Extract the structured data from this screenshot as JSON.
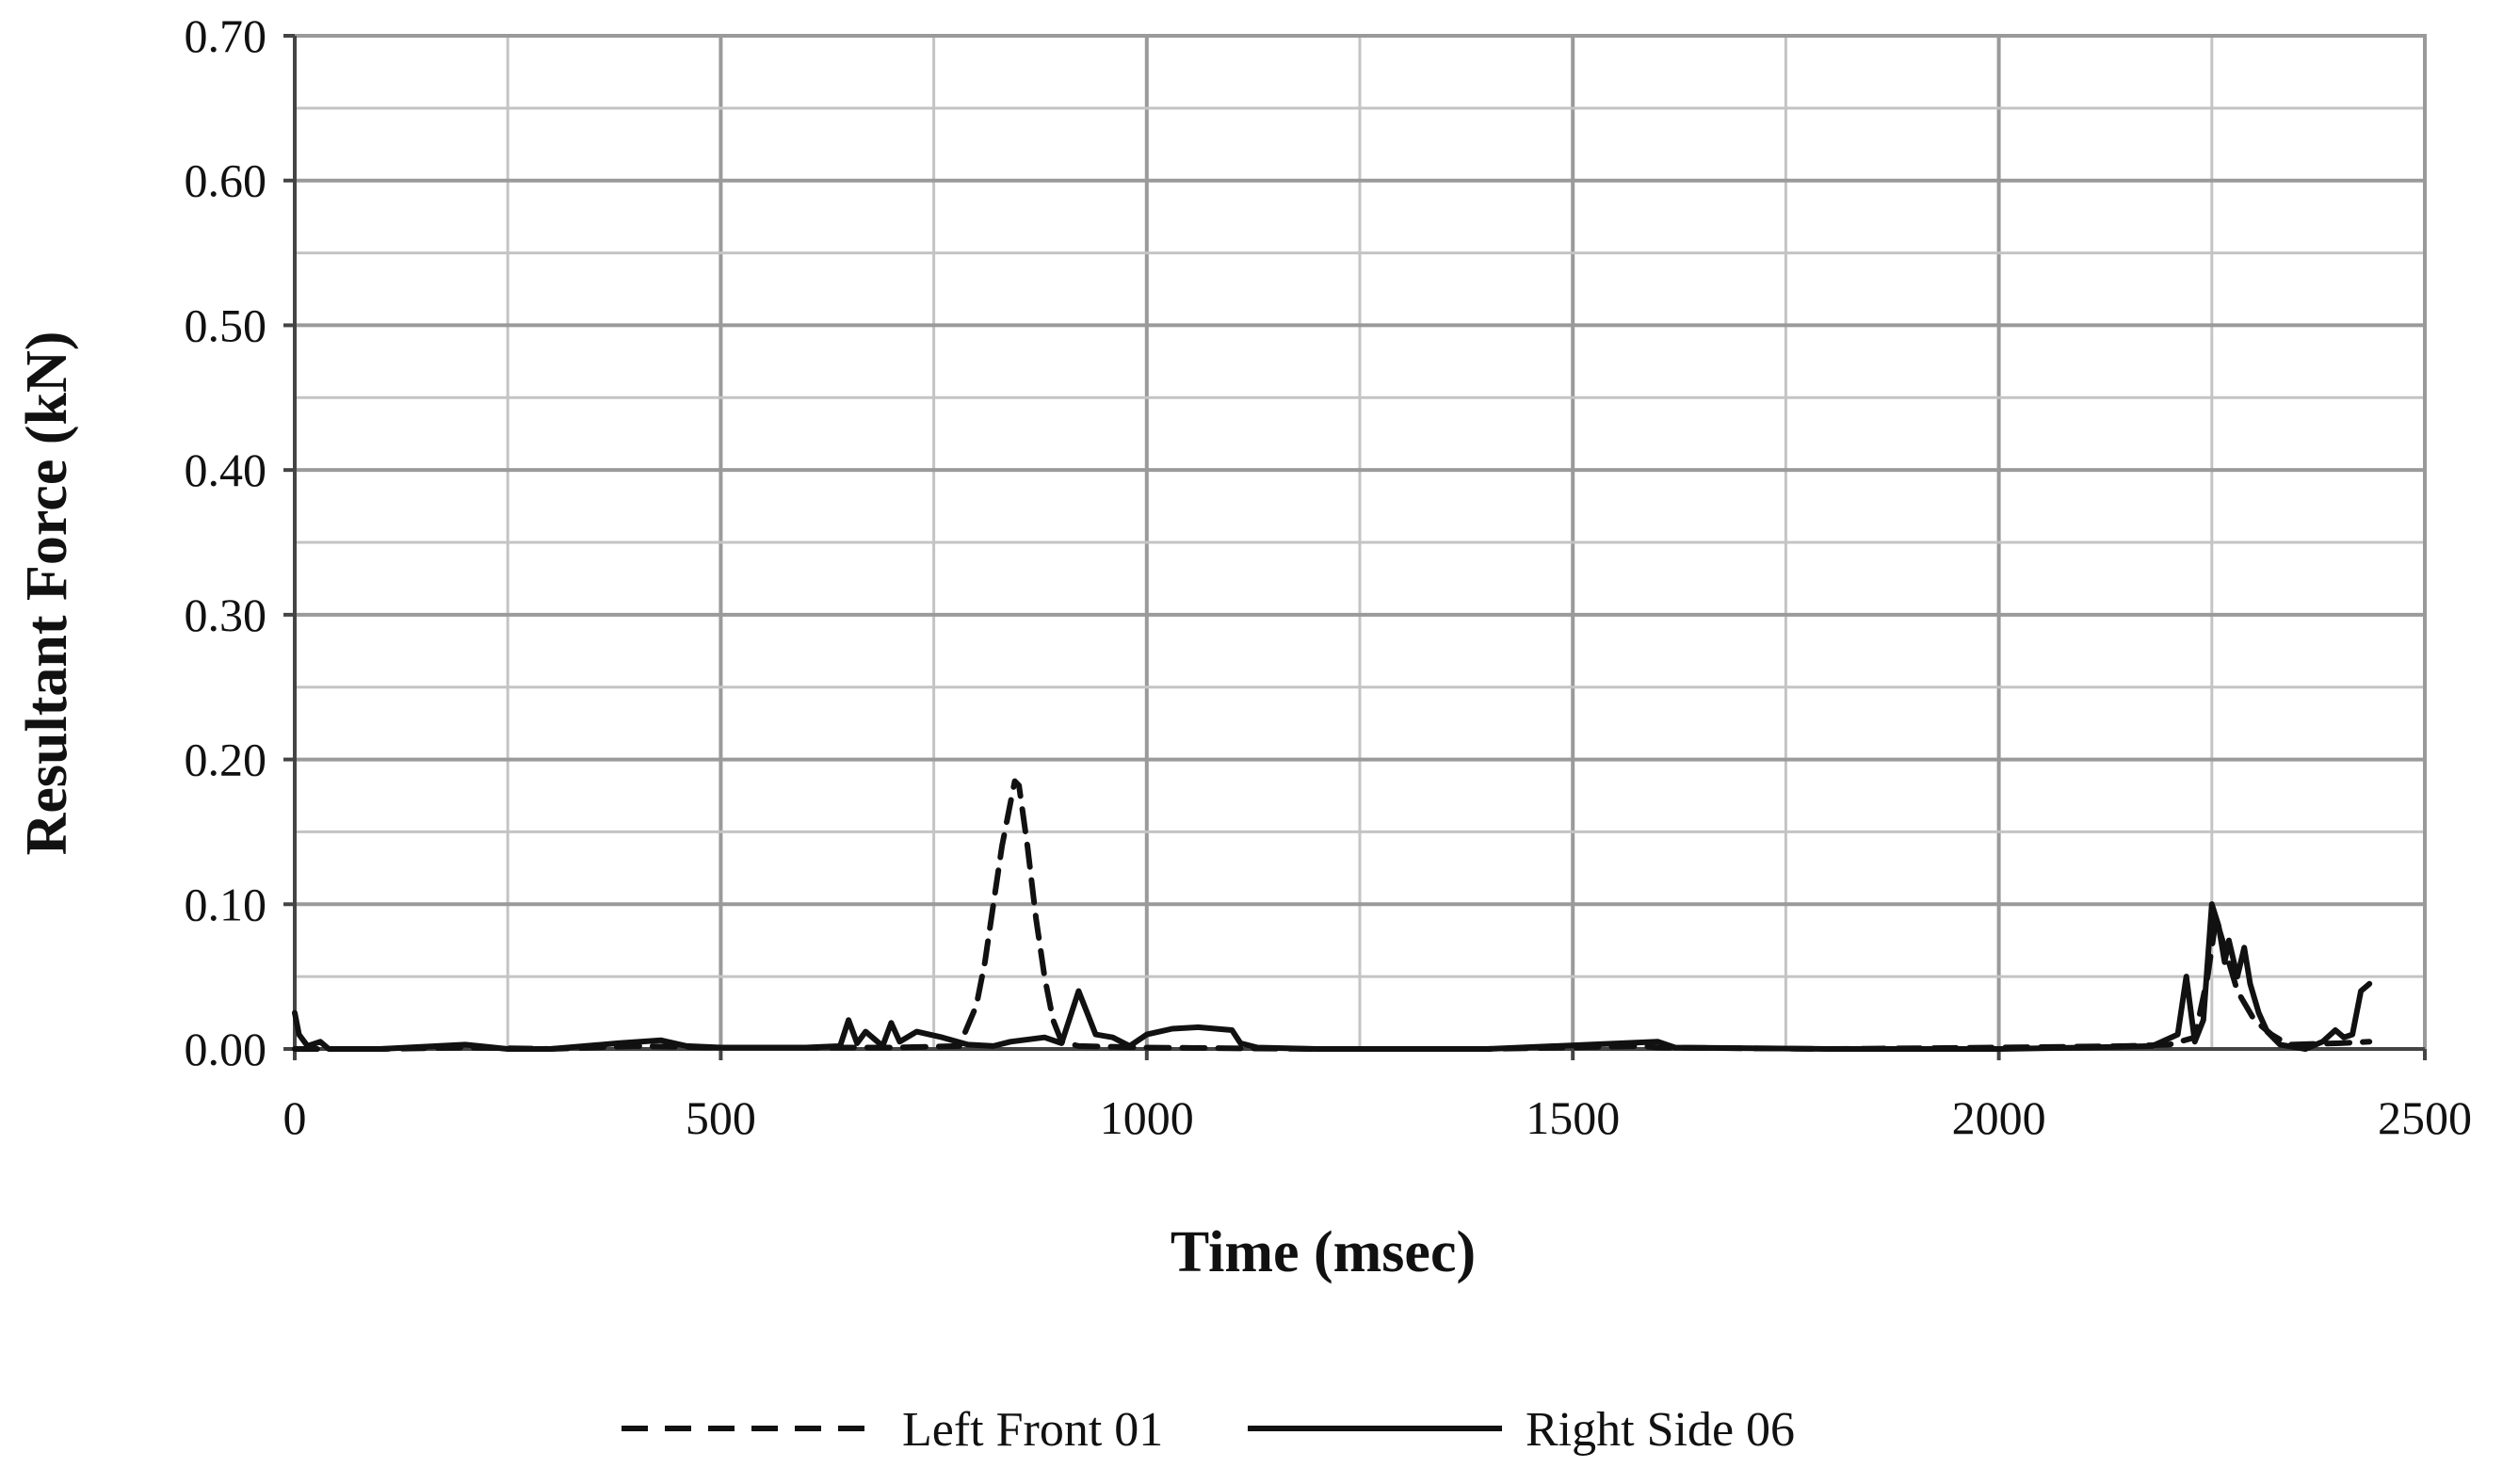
{
  "chart_data": {
    "type": "line",
    "title": "",
    "xlabel": "Time (msec)",
    "ylabel": "Resultant Force (kN)",
    "xlim": [
      0,
      2500
    ],
    "ylim": [
      0,
      0.7
    ],
    "x_ticks": [
      "0",
      "500",
      "1000",
      "1500",
      "2000",
      "2500"
    ],
    "y_ticks": [
      "0.00",
      "0.10",
      "0.20",
      "0.30",
      "0.40",
      "0.50",
      "0.60",
      "0.70"
    ],
    "grid": true,
    "legend_position": "bottom",
    "series": [
      {
        "name": "Left Front 01",
        "style": "dashed",
        "color": "#111111",
        "points": [
          [
            0,
            0.0
          ],
          [
            100,
            0.0
          ],
          [
            200,
            0.001
          ],
          [
            300,
            0.0
          ],
          [
            400,
            0.002
          ],
          [
            500,
            0.001
          ],
          [
            600,
            0.001
          ],
          [
            700,
            0.001
          ],
          [
            780,
            0.002
          ],
          [
            800,
            0.03
          ],
          [
            810,
            0.06
          ],
          [
            820,
            0.1
          ],
          [
            830,
            0.14
          ],
          [
            840,
            0.17
          ],
          [
            845,
            0.185
          ],
          [
            850,
            0.182
          ],
          [
            860,
            0.14
          ],
          [
            870,
            0.09
          ],
          [
            880,
            0.05
          ],
          [
            890,
            0.02
          ],
          [
            900,
            0.005
          ],
          [
            920,
            0.002
          ],
          [
            1000,
            0.001
          ],
          [
            1200,
            0.0
          ],
          [
            1400,
            0.0
          ],
          [
            1580,
            0.002
          ],
          [
            1600,
            0.001
          ],
          [
            1800,
            0.0
          ],
          [
            2000,
            0.001
          ],
          [
            2150,
            0.002
          ],
          [
            2200,
            0.003
          ],
          [
            2230,
            0.008
          ],
          [
            2245,
            0.05
          ],
          [
            2255,
            0.09
          ],
          [
            2265,
            0.07
          ],
          [
            2280,
            0.04
          ],
          [
            2300,
            0.02
          ],
          [
            2320,
            0.01
          ],
          [
            2340,
            0.003
          ],
          [
            2400,
            0.004
          ],
          [
            2435,
            0.005
          ]
        ]
      },
      {
        "name": "Right Side 06",
        "style": "solid",
        "color": "#111111",
        "points": [
          [
            0,
            0.025
          ],
          [
            5,
            0.01
          ],
          [
            15,
            0.002
          ],
          [
            30,
            0.005
          ],
          [
            40,
            0.0
          ],
          [
            100,
            0.0
          ],
          [
            200,
            0.003
          ],
          [
            250,
            0.0
          ],
          [
            300,
            0.0
          ],
          [
            380,
            0.004
          ],
          [
            430,
            0.006
          ],
          [
            460,
            0.002
          ],
          [
            500,
            0.001
          ],
          [
            600,
            0.001
          ],
          [
            640,
            0.002
          ],
          [
            650,
            0.02
          ],
          [
            660,
            0.004
          ],
          [
            670,
            0.012
          ],
          [
            690,
            0.002
          ],
          [
            700,
            0.018
          ],
          [
            710,
            0.005
          ],
          [
            730,
            0.012
          ],
          [
            760,
            0.008
          ],
          [
            790,
            0.003
          ],
          [
            820,
            0.002
          ],
          [
            840,
            0.005
          ],
          [
            880,
            0.008
          ],
          [
            900,
            0.004
          ],
          [
            920,
            0.04
          ],
          [
            930,
            0.025
          ],
          [
            940,
            0.01
          ],
          [
            960,
            0.008
          ],
          [
            980,
            0.002
          ],
          [
            1000,
            0.01
          ],
          [
            1030,
            0.014
          ],
          [
            1060,
            0.015
          ],
          [
            1100,
            0.013
          ],
          [
            1110,
            0.004
          ],
          [
            1130,
            0.001
          ],
          [
            1200,
            0.0
          ],
          [
            1400,
            0.0
          ],
          [
            1600,
            0.005
          ],
          [
            1620,
            0.001
          ],
          [
            1800,
            0.0
          ],
          [
            2000,
            0.0
          ],
          [
            2100,
            0.001
          ],
          [
            2180,
            0.002
          ],
          [
            2210,
            0.01
          ],
          [
            2220,
            0.05
          ],
          [
            2230,
            0.005
          ],
          [
            2240,
            0.02
          ],
          [
            2250,
            0.1
          ],
          [
            2258,
            0.085
          ],
          [
            2265,
            0.06
          ],
          [
            2270,
            0.075
          ],
          [
            2280,
            0.05
          ],
          [
            2288,
            0.07
          ],
          [
            2295,
            0.045
          ],
          [
            2305,
            0.025
          ],
          [
            2315,
            0.012
          ],
          [
            2330,
            0.003
          ],
          [
            2360,
            0.0
          ],
          [
            2380,
            0.005
          ],
          [
            2395,
            0.013
          ],
          [
            2405,
            0.008
          ],
          [
            2415,
            0.01
          ],
          [
            2425,
            0.04
          ],
          [
            2435,
            0.045
          ]
        ]
      }
    ]
  }
}
